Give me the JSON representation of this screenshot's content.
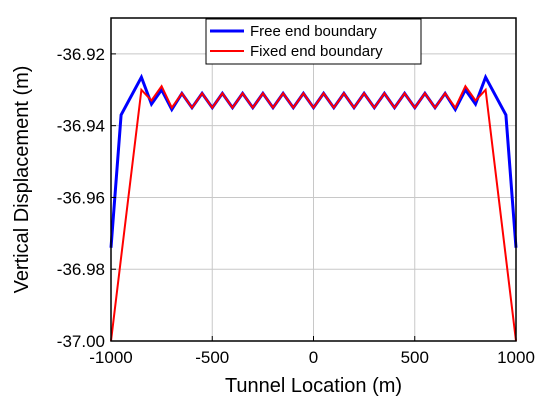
{
  "chart_data": {
    "type": "line",
    "title": "",
    "xlabel": "Tunnel Location (m)",
    "ylabel": "Vertical Displacement (m)",
    "xlim": [
      -1000,
      1000
    ],
    "ylim": [
      -37.0,
      -36.91
    ],
    "xticks": [
      -1000,
      -500,
      0,
      500,
      1000
    ],
    "yticks": [
      -37.0,
      -36.98,
      -36.96,
      -36.94,
      -36.92
    ],
    "xtick_labels": [
      "-1000",
      "-500",
      "0",
      "500",
      "1000"
    ],
    "ytick_labels": [
      "-37.00",
      "-36.98",
      "-36.96",
      "-36.94",
      "-36.92"
    ],
    "grid": true,
    "legend_position": "top-center",
    "series": [
      {
        "name": "Free end boundary",
        "color": "#0000ff",
        "x": [
          -1000,
          -950,
          -850,
          -800,
          -750,
          -700,
          -650,
          -600,
          -550,
          -500,
          -450,
          -400,
          -350,
          -300,
          -250,
          -200,
          -150,
          -100,
          -50,
          0,
          50,
          100,
          150,
          200,
          250,
          300,
          350,
          400,
          450,
          500,
          550,
          600,
          650,
          700,
          750,
          800,
          850,
          950,
          1000
        ],
        "y": [
          -36.974,
          -36.937,
          -36.9265,
          -36.934,
          -36.93,
          -36.9355,
          -36.931,
          -36.935,
          -36.931,
          -36.935,
          -36.931,
          -36.935,
          -36.931,
          -36.935,
          -36.931,
          -36.935,
          -36.931,
          -36.935,
          -36.931,
          -36.935,
          -36.931,
          -36.935,
          -36.931,
          -36.935,
          -36.931,
          -36.935,
          -36.931,
          -36.935,
          -36.931,
          -36.935,
          -36.931,
          -36.935,
          -36.931,
          -36.9355,
          -36.93,
          -36.934,
          -36.9265,
          -36.937,
          -36.974
        ]
      },
      {
        "name": "Fixed end boundary",
        "color": "#ff0000",
        "x": [
          -1000,
          -850,
          -800,
          -750,
          -700,
          -650,
          -600,
          -550,
          -500,
          -450,
          -400,
          -350,
          -300,
          -250,
          -200,
          -150,
          -100,
          -50,
          0,
          50,
          100,
          150,
          200,
          250,
          300,
          350,
          400,
          450,
          500,
          550,
          600,
          650,
          700,
          750,
          800,
          850,
          1000
        ],
        "y": [
          -37.0,
          -36.93,
          -36.933,
          -36.929,
          -36.935,
          -36.931,
          -36.935,
          -36.931,
          -36.935,
          -36.931,
          -36.935,
          -36.931,
          -36.935,
          -36.931,
          -36.935,
          -36.931,
          -36.935,
          -36.931,
          -36.935,
          -36.931,
          -36.935,
          -36.931,
          -36.935,
          -36.931,
          -36.935,
          -36.931,
          -36.935,
          -36.931,
          -36.935,
          -36.931,
          -36.935,
          -36.931,
          -36.935,
          -36.929,
          -36.933,
          -36.93,
          -37.0
        ]
      }
    ]
  }
}
